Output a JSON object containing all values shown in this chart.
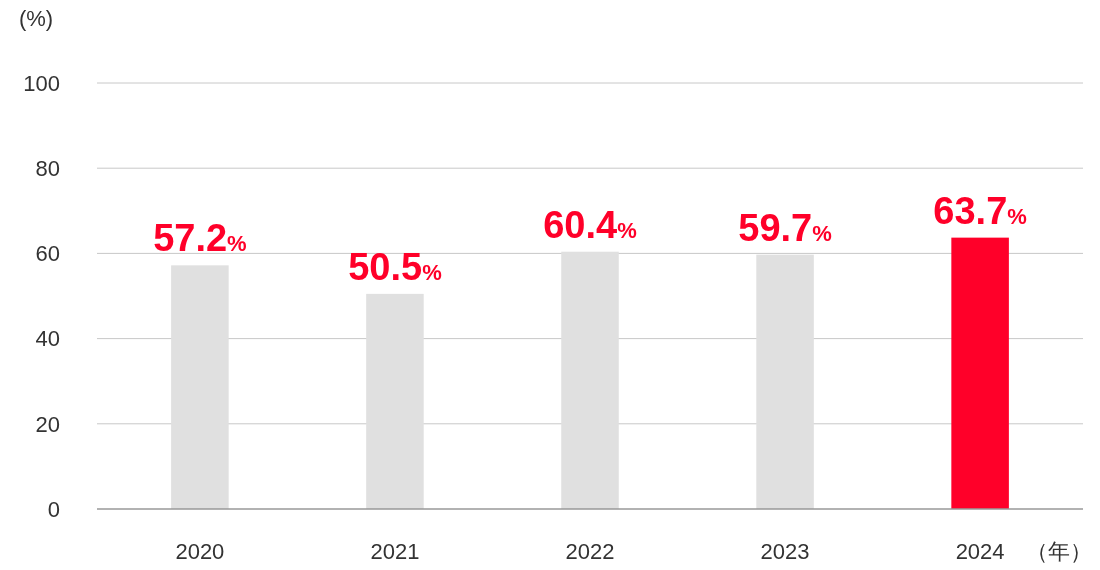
{
  "chart_data": {
    "type": "bar",
    "ylabel": "(%)",
    "xlabel": "（年）",
    "categories": [
      "2020",
      "2021",
      "2022",
      "2023",
      "2024"
    ],
    "values": [
      57.2,
      50.5,
      60.4,
      59.7,
      63.7
    ],
    "colors": [
      "#e0e0e0",
      "#e0e0e0",
      "#e0e0e0",
      "#e0e0e0",
      "#ff0029"
    ],
    "value_labels": [
      "57.2%",
      "50.5%",
      "60.4%",
      "59.7%",
      "63.7%"
    ],
    "ylim": [
      0,
      100
    ],
    "yticks": [
      0,
      20,
      40,
      60,
      80,
      100
    ],
    "grid": "y"
  }
}
